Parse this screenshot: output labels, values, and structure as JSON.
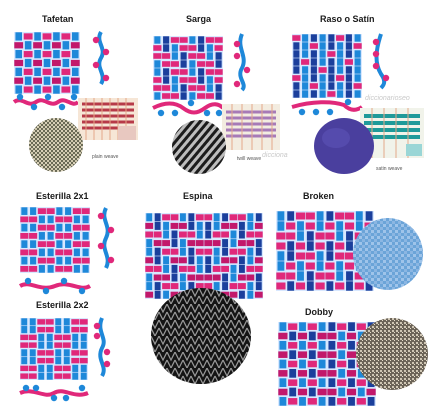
{
  "titles": {
    "tafetan": "Tafetan",
    "sarga": "Sarga",
    "raso": "Raso o Satín",
    "esterilla21": "Esterilla 2x1",
    "espina": "Espina",
    "broken": "Broken",
    "esterilla22": "Esterilla 2x2",
    "dobby": "Dobby"
  },
  "captions": {
    "plain": "plain weave",
    "twill": "twill weave",
    "satin": "satin weave"
  },
  "watermarks": {
    "w1": "diccionarioseo",
    "w2": "dicciona"
  },
  "colors": {
    "blue": "#1e88d9",
    "navy": "#1b3f9c",
    "pink": "#e0287a",
    "magenta": "#c2186b",
    "light": "#d8e8ff"
  }
}
